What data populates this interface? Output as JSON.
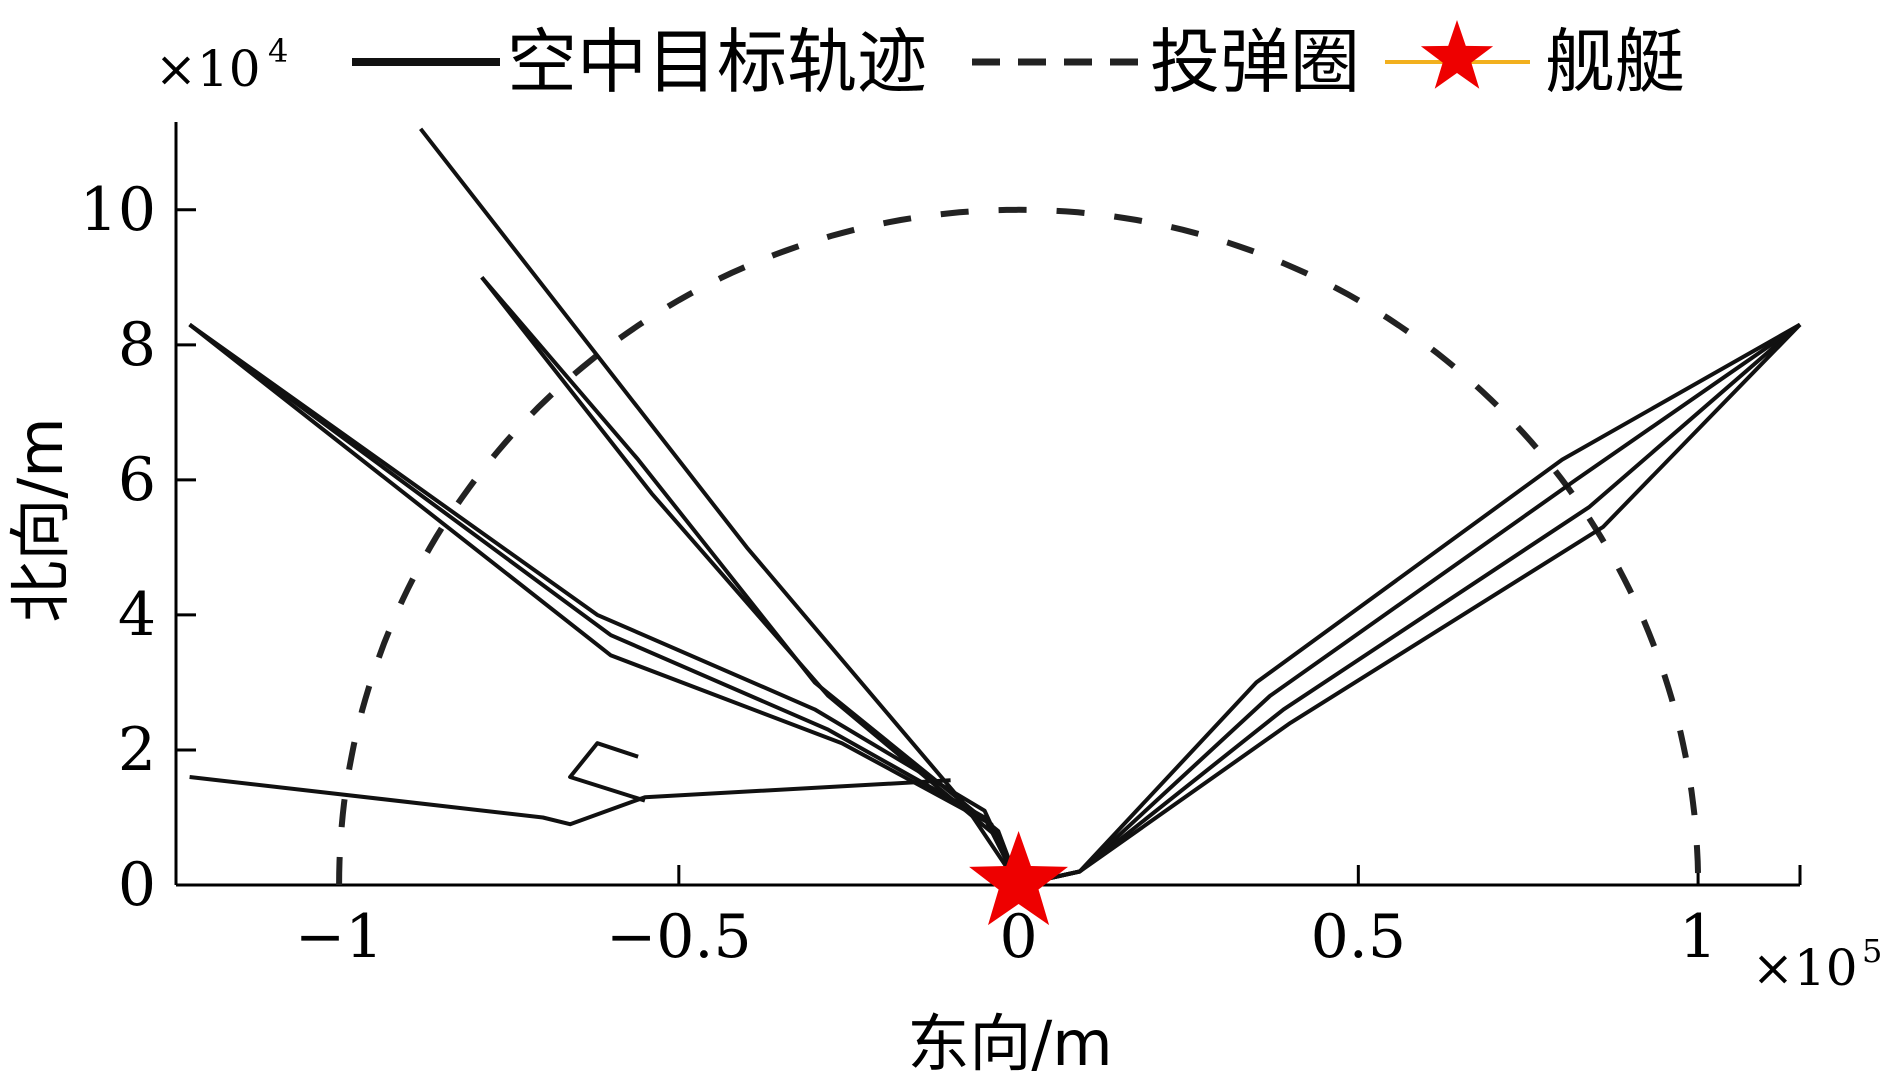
{
  "chart_data": {
    "type": "line",
    "title": "",
    "xlabel": "东向/m",
    "ylabel": "北向/m",
    "x_multiplier": "×10",
    "x_multiplier_exp": "5",
    "y_multiplier": "×10",
    "y_multiplier_exp": "4",
    "xlim": [
      -1.24,
      1.15
    ],
    "ylim": [
      0,
      11.3
    ],
    "x_ticks": [
      -1,
      -0.5,
      0,
      0.5,
      1
    ],
    "x_tick_labels": [
      "−1",
      "−0.5",
      "0",
      "0.5",
      "1"
    ],
    "y_ticks": [
      0,
      2,
      4,
      6,
      8,
      10
    ],
    "y_tick_labels": [
      "0",
      "2",
      "4",
      "6",
      "8",
      "10"
    ],
    "grid": false,
    "legend_position": "top",
    "legend": [
      {
        "label": "空中目标轨迹",
        "style": "solid",
        "color": "#111111"
      },
      {
        "label": "投弹圈",
        "style": "dashed",
        "color": "#222222"
      },
      {
        "label": "舰艇",
        "style": "star-marker",
        "color": "#ee0000",
        "line_color": "#f2b01e"
      }
    ],
    "series": [
      {
        "points": [
          [
            -1.22,
            1.6
          ],
          [
            -0.7,
            1.0
          ],
          [
            -0.66,
            0.9
          ],
          [
            -0.55,
            1.3
          ],
          [
            -0.1,
            1.55
          ]
        ]
      },
      {
        "points": [
          [
            -0.56,
            1.9
          ],
          [
            -0.62,
            2.1
          ],
          [
            -0.66,
            1.6
          ],
          [
            -0.55,
            1.25
          ]
        ]
      },
      {
        "points": [
          [
            -1.22,
            8.3
          ],
          [
            -0.62,
            4.0
          ],
          [
            -0.3,
            2.6
          ],
          [
            -0.05,
            1.1
          ],
          [
            0.0,
            0.0
          ]
        ]
      },
      {
        "points": [
          [
            -1.22,
            8.3
          ],
          [
            -0.6,
            3.7
          ],
          [
            -0.28,
            2.3
          ],
          [
            -0.05,
            1.0
          ],
          [
            0.0,
            0.0
          ]
        ]
      },
      {
        "points": [
          [
            -1.22,
            8.3
          ],
          [
            -0.6,
            3.4
          ],
          [
            -0.26,
            2.1
          ],
          [
            -0.04,
            0.9
          ],
          [
            0.0,
            0.0
          ]
        ]
      },
      {
        "points": [
          [
            -0.88,
            11.2
          ],
          [
            -0.4,
            5.0
          ],
          [
            -0.08,
            1.2
          ],
          [
            0.0,
            0.0
          ]
        ]
      },
      {
        "points": [
          [
            -0.79,
            9.0
          ],
          [
            -0.56,
            6.3
          ],
          [
            -0.3,
            3.0
          ],
          [
            -0.03,
            0.8
          ],
          [
            0.0,
            0.0
          ]
        ]
      },
      {
        "points": [
          [
            -0.79,
            9.0
          ],
          [
            -0.54,
            5.8
          ],
          [
            -0.28,
            2.8
          ],
          [
            -0.03,
            0.7
          ],
          [
            0.0,
            0.0
          ]
        ]
      },
      {
        "points": [
          [
            1.15,
            8.3
          ],
          [
            0.8,
            6.3
          ],
          [
            0.35,
            3.0
          ],
          [
            0.09,
            0.2
          ],
          [
            0.0,
            0.0
          ]
        ]
      },
      {
        "points": [
          [
            1.15,
            8.3
          ],
          [
            0.82,
            6.0
          ],
          [
            0.37,
            2.8
          ],
          [
            0.09,
            0.2
          ],
          [
            0.0,
            0.0
          ]
        ]
      },
      {
        "points": [
          [
            1.15,
            8.3
          ],
          [
            0.84,
            5.6
          ],
          [
            0.39,
            2.6
          ],
          [
            0.09,
            0.2
          ],
          [
            0.0,
            0.0
          ]
        ]
      },
      {
        "points": [
          [
            1.15,
            8.3
          ],
          [
            0.86,
            5.3
          ],
          [
            0.4,
            2.4
          ],
          [
            0.09,
            0.2
          ],
          [
            0.0,
            0.0
          ]
        ]
      }
    ],
    "circle": {
      "center": [
        0,
        0
      ],
      "radius_x": 1.0,
      "radius_y": 10.0
    },
    "ship": {
      "x": 0.0,
      "y": 0.0
    }
  }
}
